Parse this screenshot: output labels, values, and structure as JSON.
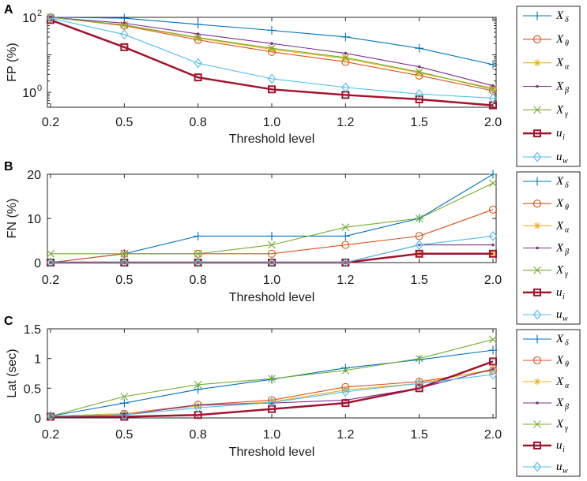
{
  "colors": {
    "X_delta": "#0072BD",
    "X_theta": "#D95319",
    "X_alpha": "#EDB120",
    "X_beta": "#7E2F8E",
    "X_gamma": "#77AC30",
    "u_i": "#A2142F",
    "u_w": "#4DBEEE"
  },
  "legend": [
    {
      "key": "X_delta",
      "base": "X",
      "sub": "δ",
      "marker": "plus"
    },
    {
      "key": "X_theta",
      "base": "X",
      "sub": "θ",
      "marker": "circle"
    },
    {
      "key": "X_alpha",
      "base": "X",
      "sub": "α",
      "marker": "star"
    },
    {
      "key": "X_beta",
      "base": "X",
      "sub": "β",
      "marker": "dot"
    },
    {
      "key": "X_gamma",
      "base": "X",
      "sub": "γ",
      "marker": "x"
    },
    {
      "key": "u_i",
      "base": "u",
      "sub": "i",
      "marker": "square",
      "bold": true
    },
    {
      "key": "u_w",
      "base": "u",
      "sub": "w",
      "marker": "diamond"
    }
  ],
  "chart_data": [
    {
      "panel": "A",
      "type": "line",
      "yscale": "log",
      "ylabel": "FP (%)",
      "xlabel": "Threshold level",
      "categories": [
        "0.2",
        "0.5",
        "0.8",
        "1.0",
        "1.2",
        "1.5",
        "2.0"
      ],
      "ylim": [
        0.4,
        100
      ],
      "yticks": [
        {
          "value": 1,
          "base": "10",
          "exp": "0"
        },
        {
          "value": 100,
          "base": "10",
          "exp": "2"
        }
      ],
      "series": [
        {
          "key": "X_delta",
          "values": [
            100,
            95,
            65,
            45,
            30,
            15,
            5.5
          ]
        },
        {
          "key": "X_theta",
          "values": [
            100,
            60,
            25,
            12,
            6.5,
            2.8,
            1.1
          ]
        },
        {
          "key": "X_alpha",
          "values": [
            100,
            62,
            28,
            14,
            8,
            3.3,
            1.3
          ]
        },
        {
          "key": "X_beta",
          "values": [
            100,
            70,
            36,
            20,
            11,
            4.8,
            1.5
          ]
        },
        {
          "key": "X_gamma",
          "values": [
            100,
            63,
            29,
            15,
            8.5,
            3.5,
            1.2
          ]
        },
        {
          "key": "u_i",
          "values": [
            85,
            16,
            2.5,
            1.2,
            0.85,
            0.65,
            0.45
          ]
        },
        {
          "key": "u_w",
          "values": [
            95,
            35,
            6,
            2.3,
            1.35,
            0.9,
            0.7
          ]
        }
      ]
    },
    {
      "panel": "B",
      "type": "line",
      "yscale": "linear",
      "ylabel": "FN (%)",
      "xlabel": "Threshold level",
      "categories": [
        "0.2",
        "0.5",
        "0.8",
        "1.0",
        "1.2",
        "1.5",
        "2.0"
      ],
      "ylim": [
        0,
        20
      ],
      "yticks": [
        {
          "value": 0,
          "label": "0"
        },
        {
          "value": 10,
          "label": "10"
        },
        {
          "value": 20,
          "label": "20"
        }
      ],
      "series": [
        {
          "key": "X_delta",
          "values": [
            0,
            2,
            6,
            6,
            6,
            10,
            20
          ]
        },
        {
          "key": "X_theta",
          "values": [
            0,
            2,
            2,
            2,
            4,
            6,
            12
          ]
        },
        {
          "key": "X_alpha",
          "values": [
            0,
            0,
            0,
            0,
            0,
            2,
            2
          ]
        },
        {
          "key": "X_beta",
          "values": [
            0,
            0,
            0,
            0,
            0,
            4,
            4
          ]
        },
        {
          "key": "X_gamma",
          "values": [
            2,
            2,
            2,
            4,
            8,
            10,
            18
          ]
        },
        {
          "key": "u_i",
          "values": [
            0,
            0,
            0,
            0,
            0,
            2,
            2
          ]
        },
        {
          "key": "u_w",
          "values": [
            0,
            0,
            0,
            0,
            0,
            4,
            6
          ]
        }
      ]
    },
    {
      "panel": "C",
      "type": "line",
      "yscale": "linear",
      "ylabel": "Lat (sec)",
      "xlabel": "Threshold level",
      "categories": [
        "0.2",
        "0.5",
        "0.8",
        "1.0",
        "1.2",
        "1.5",
        "2.0"
      ],
      "ylim": [
        0,
        1.5
      ],
      "yticks": [
        {
          "value": 0,
          "label": "0"
        },
        {
          "value": 0.5,
          "label": "0.5"
        },
        {
          "value": 1,
          "label": "1"
        },
        {
          "value": 1.5,
          "label": "1.5"
        }
      ],
      "series": [
        {
          "key": "X_delta",
          "values": [
            0.03,
            0.25,
            0.48,
            0.65,
            0.84,
            0.98,
            1.14
          ]
        },
        {
          "key": "X_theta",
          "values": [
            0.03,
            0.07,
            0.22,
            0.3,
            0.52,
            0.61,
            0.8
          ]
        },
        {
          "key": "X_alpha",
          "values": [
            0.03,
            0.07,
            0.2,
            0.27,
            0.47,
            0.58,
            0.82
          ]
        },
        {
          "key": "X_beta",
          "values": [
            0.03,
            0.05,
            0.22,
            0.25,
            0.3,
            0.5,
            0.82
          ]
        },
        {
          "key": "X_gamma",
          "values": [
            0.03,
            0.36,
            0.56,
            0.66,
            0.8,
            1.0,
            1.32
          ]
        },
        {
          "key": "u_i",
          "values": [
            0.02,
            0.02,
            0.05,
            0.15,
            0.25,
            0.5,
            0.95
          ]
        },
        {
          "key": "u_w",
          "values": [
            0.03,
            0.05,
            0.17,
            0.26,
            0.44,
            0.58,
            0.73
          ]
        }
      ]
    }
  ]
}
